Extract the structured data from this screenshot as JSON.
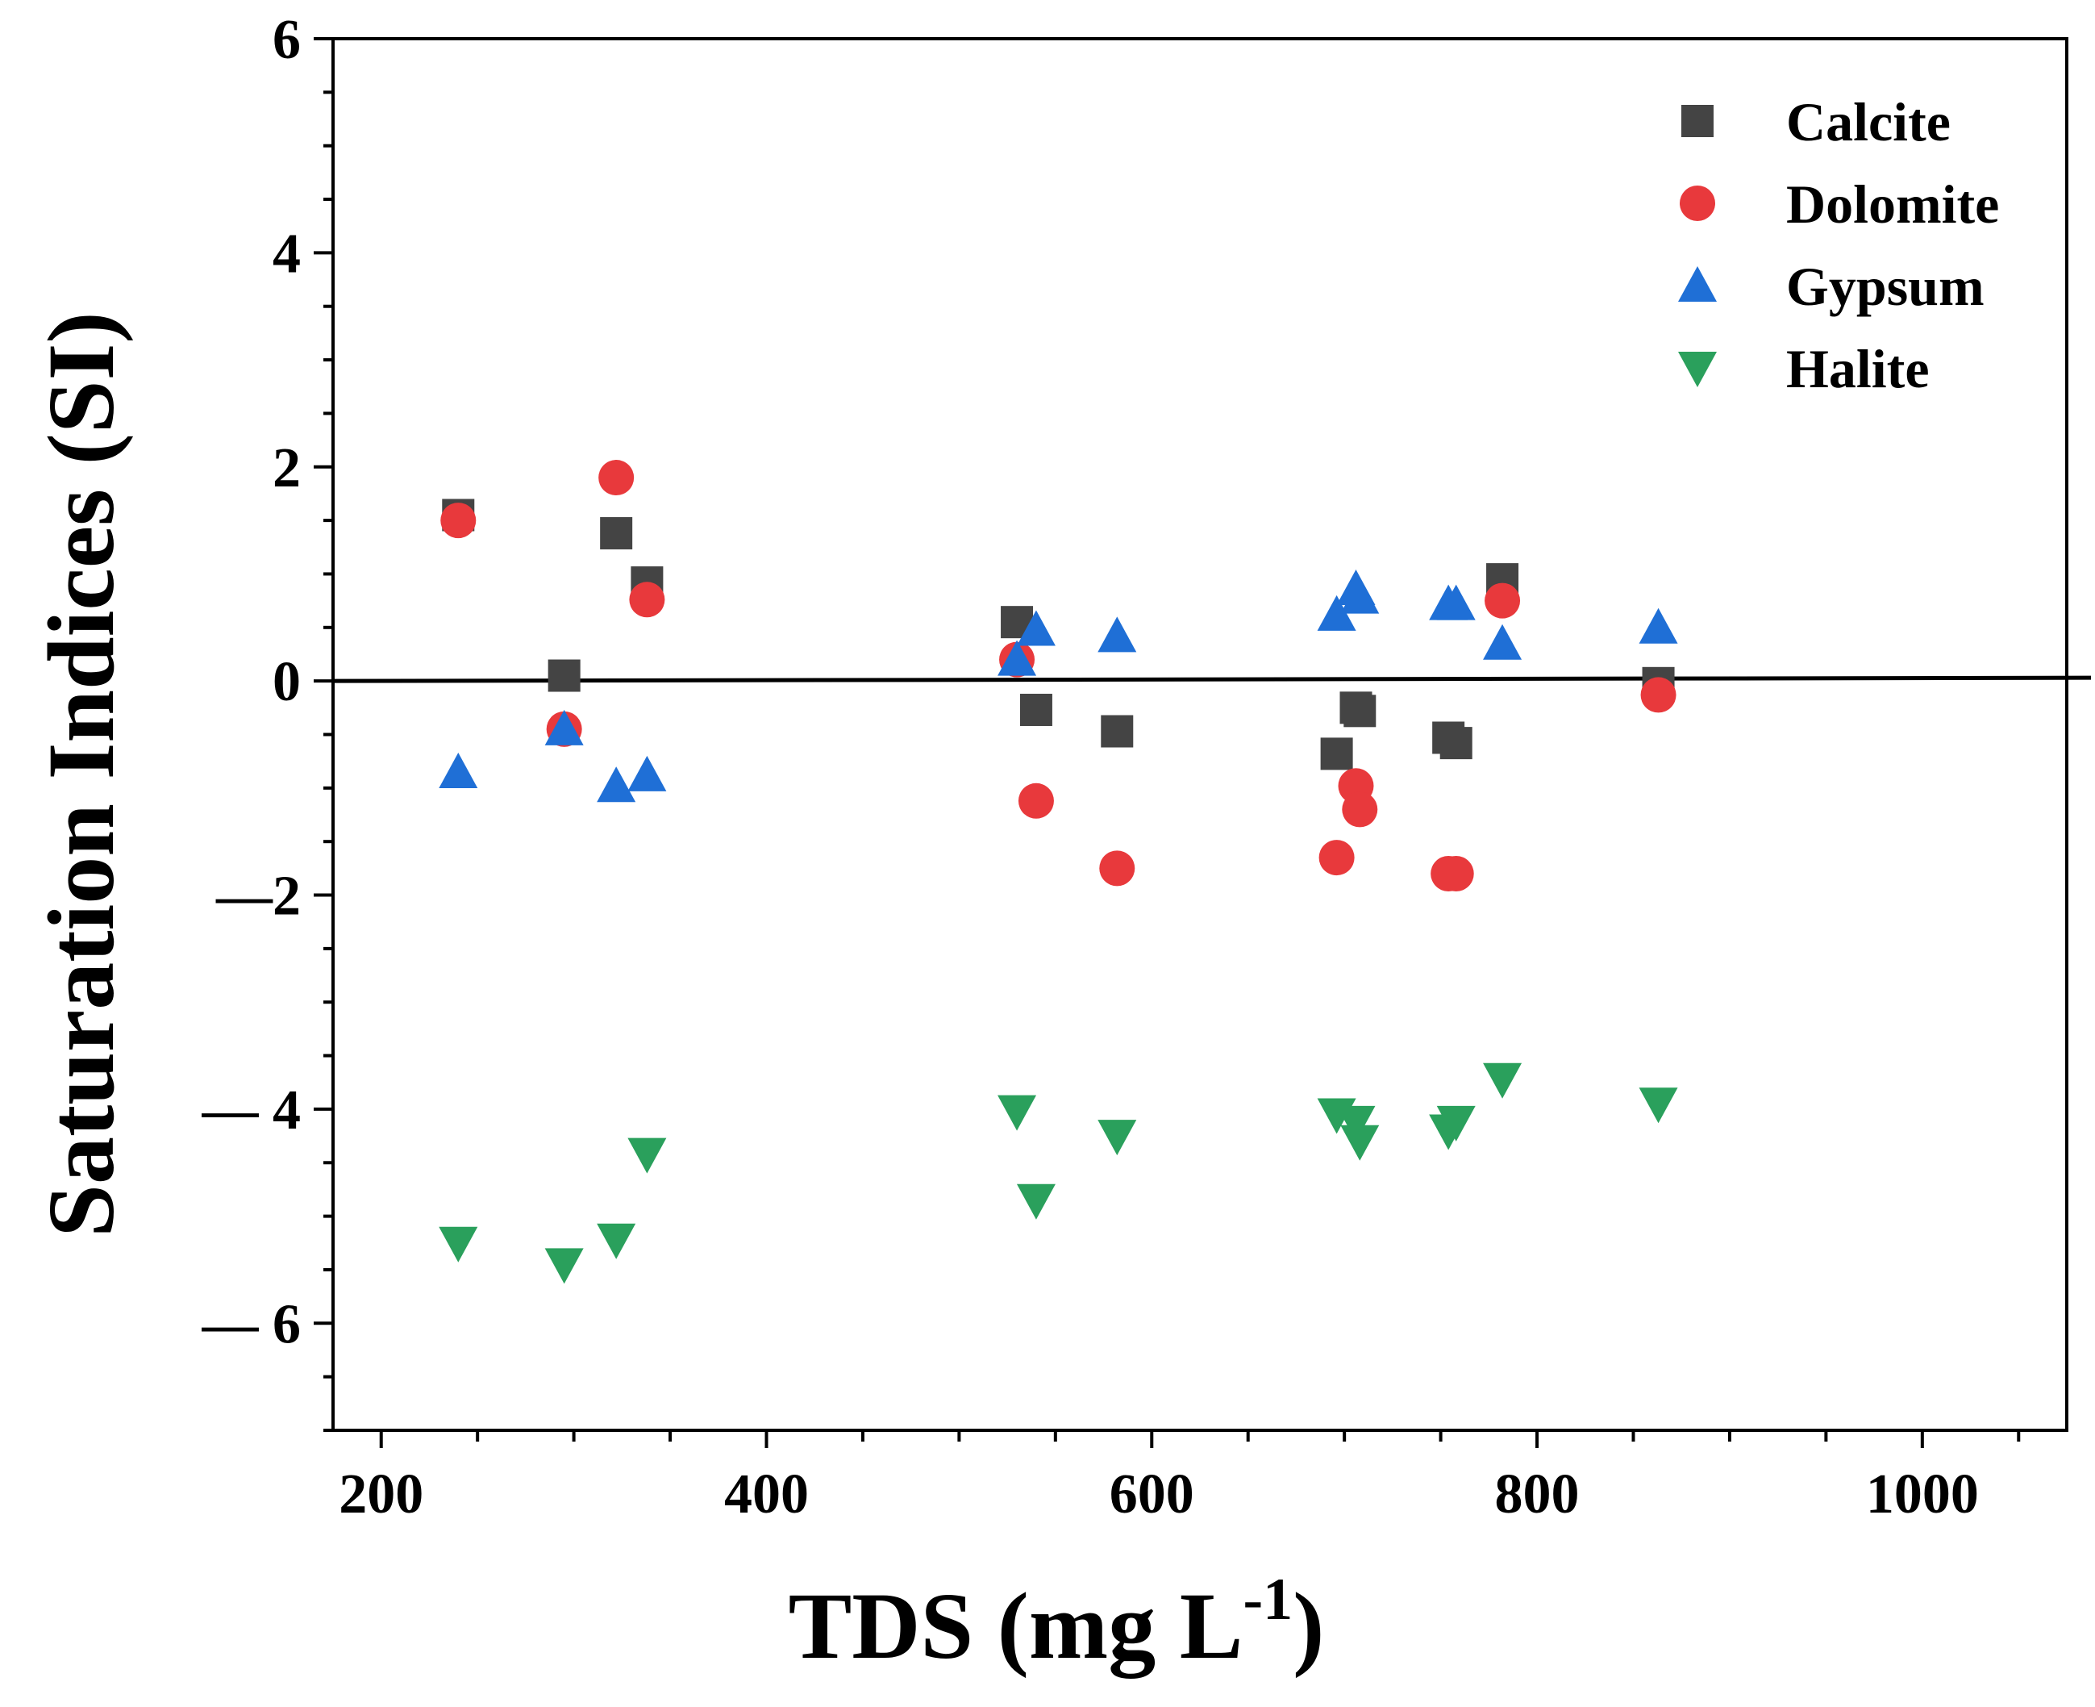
{
  "chart_data": {
    "type": "scatter",
    "title": "",
    "xlabel": "TDS (mg L",
    "xlabel_sup": "-1",
    "xlabel_close": ")",
    "ylabel": "Saturation Indices (SI)",
    "xlim": [
      175,
      1075
    ],
    "ylim": [
      -7,
      6
    ],
    "x_ticks": [
      200,
      400,
      600,
      800,
      1000
    ],
    "x_tick_labels": [
      "200",
      "400",
      "600",
      "800",
      "1000"
    ],
    "y_ticks": [
      6,
      4,
      2,
      0,
      -2,
      -4,
      -6
    ],
    "y_tick_labels": [
      "6",
      "4",
      "2",
      "0",
      "—2",
      "— 4",
      "— 6"
    ],
    "reference_line": 0,
    "legend_position": "top-right",
    "series": [
      {
        "name": "Calcite",
        "marker": "square",
        "color": "#444444",
        "points": [
          [
            240,
            1.55
          ],
          [
            295,
            0.05
          ],
          [
            322,
            1.38
          ],
          [
            338,
            0.92
          ],
          [
            530,
            0.55
          ],
          [
            540,
            -0.27
          ],
          [
            582,
            -0.47
          ],
          [
            696,
            -0.68
          ],
          [
            706,
            -0.25
          ],
          [
            708,
            -0.28
          ],
          [
            754,
            -0.53
          ],
          [
            758,
            -0.58
          ],
          [
            782,
            0.95
          ],
          [
            863,
            -0.02
          ]
        ]
      },
      {
        "name": "Dolomite",
        "marker": "circle",
        "color": "#e8393c",
        "points": [
          [
            240,
            1.5
          ],
          [
            295,
            -0.45
          ],
          [
            322,
            1.9
          ],
          [
            338,
            0.76
          ],
          [
            530,
            0.2
          ],
          [
            540,
            -1.12
          ],
          [
            582,
            -1.75
          ],
          [
            696,
            -1.65
          ],
          [
            706,
            -0.98
          ],
          [
            708,
            -1.2
          ],
          [
            754,
            -1.8
          ],
          [
            758,
            -1.8
          ],
          [
            782,
            0.75
          ],
          [
            863,
            -0.13
          ]
        ]
      },
      {
        "name": "Gypsum",
        "marker": "triangle-up",
        "color": "#1f6fd6",
        "points": [
          [
            240,
            -0.85
          ],
          [
            295,
            -0.45
          ],
          [
            322,
            -0.98
          ],
          [
            338,
            -0.88
          ],
          [
            530,
            0.2
          ],
          [
            540,
            0.48
          ],
          [
            582,
            0.42
          ],
          [
            696,
            0.62
          ],
          [
            706,
            0.86
          ],
          [
            708,
            0.78
          ],
          [
            754,
            0.72
          ],
          [
            758,
            0.72
          ],
          [
            782,
            0.35
          ],
          [
            863,
            0.5
          ]
        ]
      },
      {
        "name": "Halite",
        "marker": "triangle-down",
        "color": "#2aa05c",
        "points": [
          [
            240,
            -5.25
          ],
          [
            295,
            -5.45
          ],
          [
            322,
            -5.22
          ],
          [
            338,
            -4.42
          ],
          [
            530,
            -4.02
          ],
          [
            540,
            -4.85
          ],
          [
            582,
            -4.25
          ],
          [
            696,
            -4.05
          ],
          [
            706,
            -4.12
          ],
          [
            708,
            -4.3
          ],
          [
            754,
            -4.2
          ],
          [
            758,
            -4.12
          ],
          [
            782,
            -3.72
          ],
          [
            863,
            -3.95
          ]
        ]
      }
    ]
  }
}
